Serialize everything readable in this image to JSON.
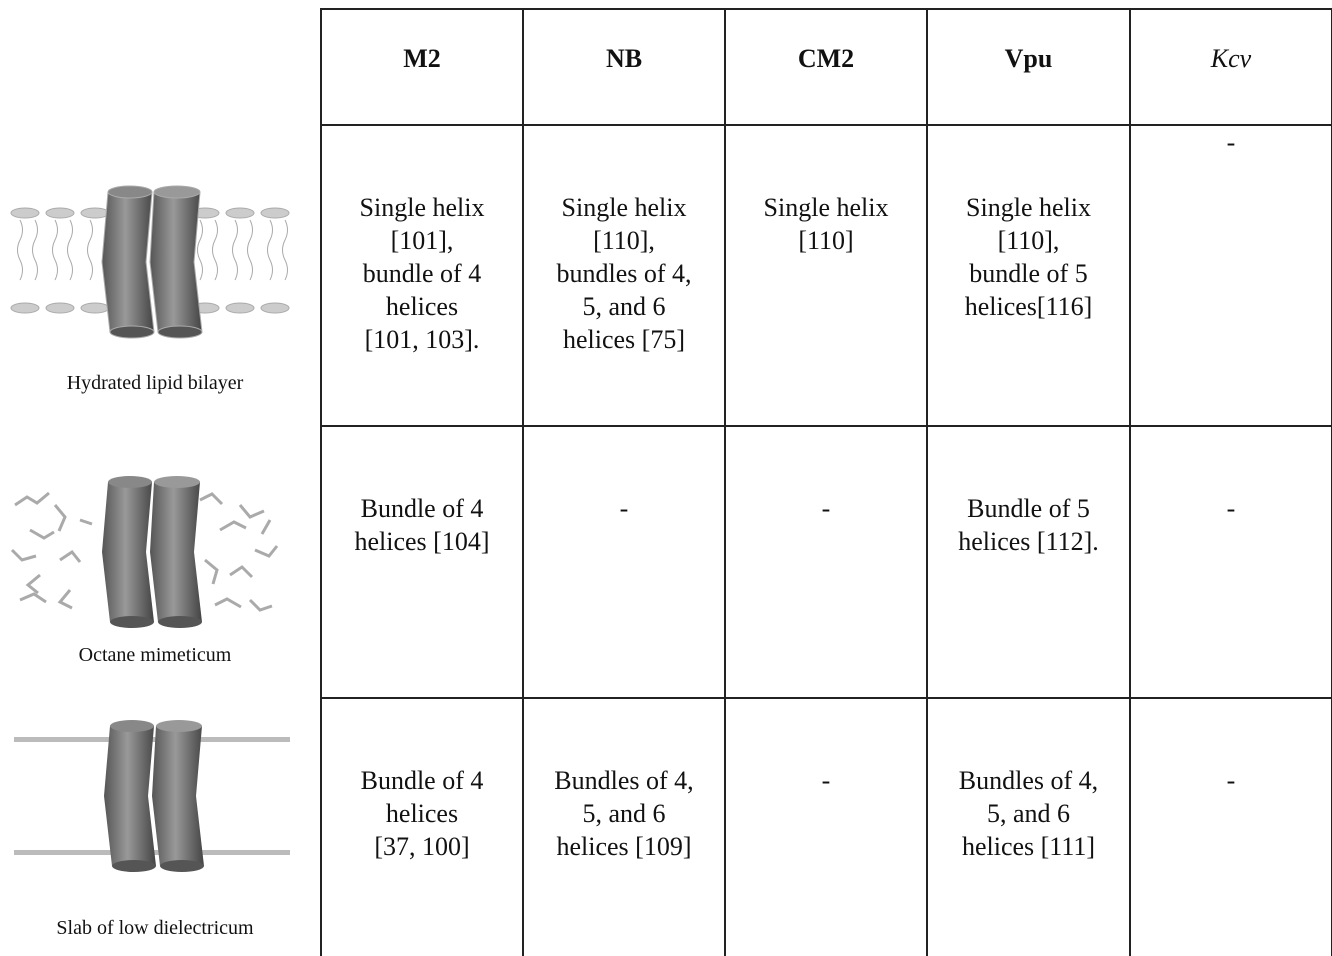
{
  "table": {
    "header": [
      "M2",
      "NB",
      "CM2",
      "Vpu",
      "Kcv"
    ],
    "rows": [
      {
        "label": "Hydrated lipid bilayer",
        "cells": [
          [
            "Single helix",
            "[101],",
            "bundle of 4",
            "helices",
            "[101, 103]."
          ],
          [
            "Single helix",
            "[110],",
            "bundles of 4,",
            "5, and 6",
            "helices [75]"
          ],
          [
            "Single helix",
            "[110]"
          ],
          [
            "Single helix",
            "[110],",
            "bundle of 5",
            "helices[116]"
          ],
          [
            "-"
          ]
        ]
      },
      {
        "label": "Octane mimeticum",
        "cells": [
          [
            "Bundle of 4",
            "helices [104]"
          ],
          [
            "-"
          ],
          [
            "-"
          ],
          [
            "Bundle of 5",
            "helices [112]."
          ],
          [
            "-"
          ]
        ]
      },
      {
        "label": "Slab of low dielectricum",
        "cells": [
          [
            "Bundle of 4",
            "helices",
            "[37, 100]"
          ],
          [
            "Bundles of 4,",
            "5, and 6",
            "helices [109]"
          ],
          [
            "-"
          ],
          [
            "Bundles of 4,",
            "5, and 6",
            "helices [111]"
          ],
          [
            "-"
          ]
        ]
      }
    ]
  }
}
